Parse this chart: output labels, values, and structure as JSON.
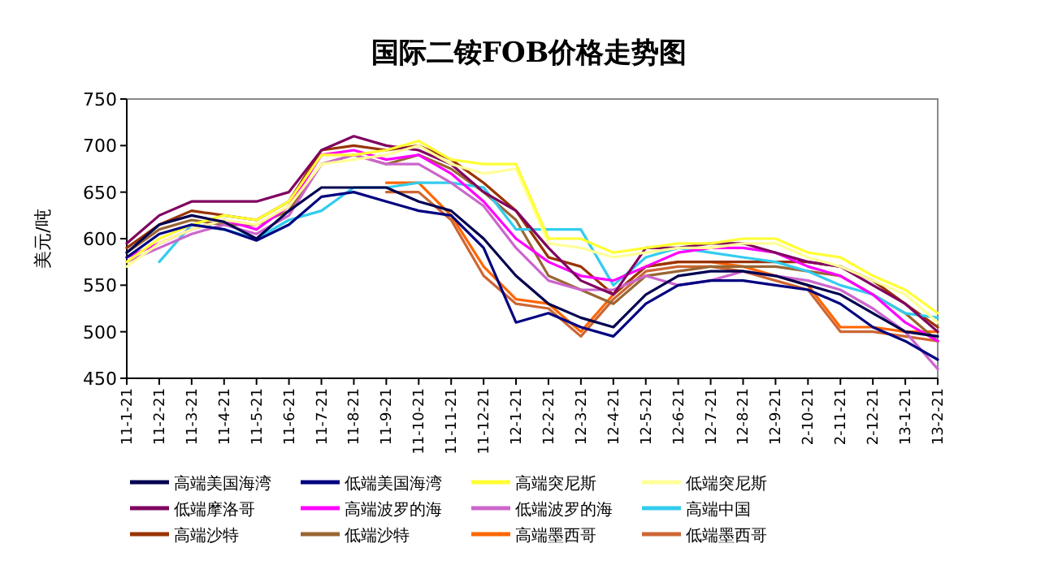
{
  "chart_data": {
    "type": "line",
    "title": "国际二铵FOB价格走势图",
    "ylabel": "美元/吨",
    "categories": [
      "11-1-21",
      "11-2-21",
      "11-3-21",
      "11-4-21",
      "11-5-21",
      "11-6-21",
      "11-7-21",
      "11-8-21",
      "11-9-21",
      "11-10-21",
      "11-11-21",
      "11-12-21",
      "12-1-21",
      "12-2-21",
      "12-3-21",
      "12-4-21",
      "12-5-21",
      "12-6-21",
      "12-7-21",
      "12-8-21",
      "12-9-21",
      "2-10-21",
      "2-11-21",
      "2-12-21",
      "13-1-21",
      "13-2-21"
    ],
    "ylim": [
      450,
      750
    ],
    "yticks": [
      450,
      500,
      550,
      600,
      650,
      700,
      750
    ],
    "legend": "bottom",
    "series": [
      {
        "name": "高端美国海湾",
        "color": "#000050",
        "values": [
          585,
          615,
          625,
          618,
          600,
          630,
          655,
          655,
          655,
          640,
          630,
          600,
          560,
          530,
          515,
          505,
          540,
          560,
          565,
          565,
          560,
          550,
          540,
          520,
          500,
          495
        ]
      },
      {
        "name": "低端美国海湾",
        "color": "#000080",
        "values": [
          580,
          605,
          615,
          610,
          598,
          615,
          645,
          650,
          640,
          630,
          625,
          590,
          510,
          520,
          505,
          495,
          530,
          550,
          555,
          555,
          550,
          545,
          530,
          505,
          490,
          470
        ]
      },
      {
        "name": "高端突尼斯",
        "color": "#ffff33",
        "values": [
          575,
          600,
          615,
          625,
          620,
          640,
          690,
          690,
          695,
          705,
          685,
          680,
          680,
          600,
          600,
          585,
          590,
          595,
          595,
          600,
          600,
          585,
          580,
          560,
          545,
          520
        ]
      },
      {
        "name": "低端突尼斯",
        "color": "#ffff99",
        "values": [
          570,
          595,
          610,
          620,
          615,
          635,
          680,
          685,
          690,
          700,
          680,
          670,
          675,
          595,
          590,
          580,
          585,
          590,
          590,
          595,
          595,
          580,
          570,
          555,
          540,
          510
        ]
      },
      {
        "name": "低端摩洛哥",
        "color": "#800060",
        "values": [
          595,
          625,
          640,
          640,
          640,
          650,
          695,
          710,
          700,
          695,
          680,
          650,
          630,
          590,
          555,
          540,
          590,
          590,
          595,
          595,
          585,
          575,
          570,
          550,
          530,
          500
        ]
      },
      {
        "name": "高端波罗的海",
        "color": "#ff00ff",
        "values": [
          580,
          595,
          610,
          620,
          610,
          635,
          690,
          695,
          685,
          690,
          670,
          640,
          600,
          575,
          560,
          555,
          570,
          585,
          590,
          590,
          585,
          570,
          560,
          540,
          510,
          490
        ]
      },
      {
        "name": "低端波罗的海",
        "color": "#cc66cc",
        "values": [
          575,
          590,
          605,
          615,
          605,
          625,
          680,
          690,
          680,
          680,
          660,
          635,
          590,
          555,
          545,
          545,
          560,
          550,
          555,
          565,
          560,
          555,
          545,
          525,
          500,
          460
        ]
      },
      {
        "name": "高端中国",
        "color": "#33ccee",
        "values": [
          null,
          575,
          615,
          610,
          600,
          620,
          630,
          655,
          655,
          660,
          660,
          655,
          610,
          610,
          610,
          550,
          580,
          590,
          585,
          580,
          575,
          565,
          550,
          540,
          520,
          515
        ]
      },
      {
        "name": "高端沙特",
        "color": "#993300",
        "values": [
          590,
          615,
          630,
          625,
          620,
          640,
          695,
          700,
          695,
          700,
          685,
          660,
          630,
          580,
          570,
          540,
          570,
          575,
          575,
          575,
          575,
          575,
          570,
          555,
          530,
          505
        ]
      },
      {
        "name": "低端沙特",
        "color": "#996633",
        "values": [
          585,
          610,
          620,
          615,
          615,
          630,
          680,
          690,
          680,
          690,
          675,
          650,
          620,
          560,
          545,
          530,
          560,
          565,
          570,
          570,
          570,
          565,
          560,
          540,
          520,
          490
        ]
      },
      {
        "name": "高端墨西哥",
        "color": "#ff6600",
        "values": [
          null,
          null,
          null,
          null,
          null,
          null,
          null,
          null,
          660,
          660,
          625,
          570,
          535,
          530,
          500,
          540,
          570,
          575,
          575,
          570,
          560,
          550,
          505,
          505,
          500,
          500
        ]
      },
      {
        "name": "低端墨西哥",
        "color": "#cc6633",
        "values": [
          null,
          null,
          null,
          null,
          null,
          null,
          null,
          null,
          650,
          650,
          620,
          560,
          530,
          525,
          495,
          535,
          565,
          570,
          570,
          565,
          555,
          545,
          500,
          500,
          495,
          490
        ]
      }
    ]
  }
}
